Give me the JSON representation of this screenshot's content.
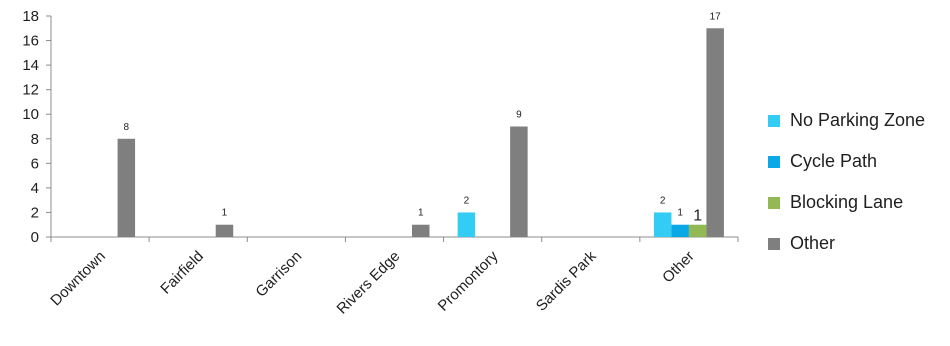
{
  "chart_data": {
    "type": "bar",
    "title": "",
    "xlabel": "",
    "ylabel": "",
    "ylim": [
      0,
      18
    ],
    "yticks": [
      0,
      2,
      4,
      6,
      8,
      10,
      12,
      14,
      16,
      18
    ],
    "grid": false,
    "legend_position": "right",
    "categories": [
      "Downtown",
      "Fairfield",
      "Garrison",
      "Rivers Edge",
      "Promontory",
      "Sardis Park",
      "Other"
    ],
    "series": [
      {
        "name": "No Parking Zone",
        "color": "#33ccf5",
        "values": [
          null,
          null,
          null,
          null,
          2,
          null,
          2
        ]
      },
      {
        "name": "Cycle Path",
        "color": "#0aa8e6",
        "values": [
          null,
          null,
          null,
          null,
          null,
          null,
          1
        ]
      },
      {
        "name": "Blocking Lane",
        "color": "#92b954",
        "values": [
          null,
          null,
          null,
          null,
          null,
          null,
          1
        ]
      },
      {
        "name": "Other",
        "color": "#7f7f7f",
        "values": [
          8,
          1,
          null,
          1,
          9,
          null,
          17
        ]
      }
    ]
  }
}
